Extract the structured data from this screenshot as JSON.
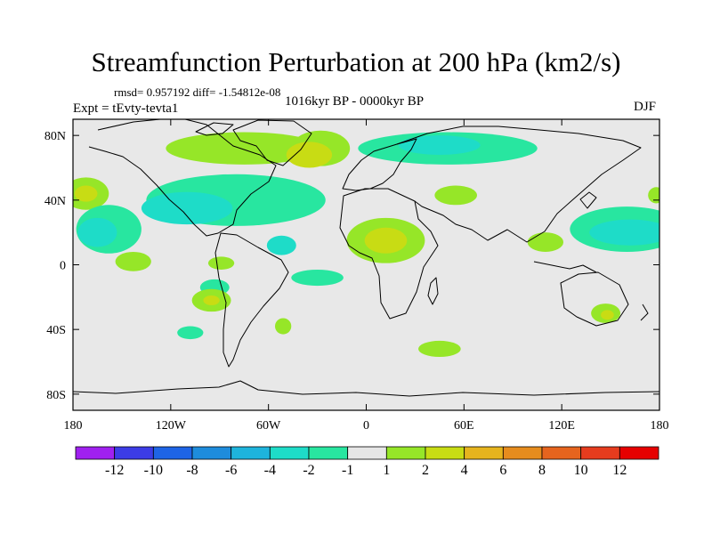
{
  "chart_data": {
    "type": "map-contour",
    "title": "Streamfunction Perturbation at 200 hPa (km2/s)",
    "stats_text": "rmsd= 0.957192 diff= -1.54812e-08",
    "left_subtitle": "Expt = tEvty-tevta1",
    "center_subtitle": "1016kyr BP - 0000kyr BP",
    "right_subtitle": "DJF",
    "projection": "cylindrical-equidistant",
    "xlim": [
      -180,
      180
    ],
    "ylim": [
      -90,
      90
    ],
    "x_ticks": [
      -180,
      -120,
      -60,
      0,
      60,
      120,
      180
    ],
    "x_tick_labels": [
      "180",
      "120W",
      "60W",
      "0",
      "60E",
      "120E",
      "180"
    ],
    "y_ticks": [
      80,
      40,
      0,
      -40,
      -80
    ],
    "y_tick_labels": [
      "80N",
      "40N",
      "0",
      "40S",
      "80S"
    ],
    "background_color": "#e8e8e8",
    "levels": [
      -12,
      -10,
      -8,
      -6,
      -4,
      -2,
      -1,
      1,
      2,
      4,
      6,
      8,
      10,
      12
    ],
    "colorbar_labels": [
      "-12",
      "-10",
      "-8",
      "-6",
      "-4",
      "-2",
      "-1",
      "1",
      "2",
      "4",
      "6",
      "8",
      "10",
      "12"
    ],
    "colorbar_colors": [
      "#a020f0",
      "#3c3ce6",
      "#1e64e6",
      "#1e8cdc",
      "#1eb4dc",
      "#1edcc8",
      "#28e6a0",
      "#e6e6e6",
      "#96e628",
      "#c8dc14",
      "#e6b41e",
      "#e68c1e",
      "#e6641e",
      "#e63c1e",
      "#e60000"
    ],
    "contour_regions": [
      {
        "name": "north-america-high",
        "lon": -75,
        "lat": 72,
        "rx": 48,
        "ry": 10,
        "color": "#96e628"
      },
      {
        "name": "greenland-high",
        "lon": -28,
        "lat": 72,
        "rx": 18,
        "ry": 11,
        "color": "#96e628"
      },
      {
        "name": "greenland-high-core",
        "lon": -35,
        "lat": 68,
        "rx": 14,
        "ry": 8,
        "color": "#c8dc14"
      },
      {
        "name": "siberia-low",
        "lon": 50,
        "lat": 72,
        "rx": 55,
        "ry": 10,
        "color": "#28e6a0"
      },
      {
        "name": "siberia-low-core",
        "lon": 45,
        "lat": 74,
        "rx": 25,
        "ry": 6,
        "color": "#1edcc8"
      },
      {
        "name": "north-pacific-high",
        "lon": -172,
        "lat": 44,
        "rx": 14,
        "ry": 10,
        "color": "#96e628"
      },
      {
        "name": "north-pacific-high-core",
        "lon": -172,
        "lat": 44,
        "rx": 7,
        "ry": 5,
        "color": "#c8dc14"
      },
      {
        "name": "east-pacific-low",
        "lon": -158,
        "lat": 22,
        "rx": 20,
        "ry": 15,
        "color": "#28e6a0"
      },
      {
        "name": "east-pacific-low-core",
        "lon": -165,
        "lat": 20,
        "rx": 12,
        "ry": 9,
        "color": "#1edcc8"
      },
      {
        "name": "north-atlantic-low",
        "lon": -80,
        "lat": 40,
        "rx": 55,
        "ry": 16,
        "color": "#28e6a0"
      },
      {
        "name": "north-atlantic-low-core",
        "lon": -110,
        "lat": 35,
        "rx": 28,
        "ry": 10,
        "color": "#1edcc8"
      },
      {
        "name": "mid-atlantic-low",
        "lon": -40,
        "lat": 36,
        "rx": 10,
        "ry": 5,
        "color": "#28e6a0"
      },
      {
        "name": "caribbean-low",
        "lon": -52,
        "lat": 12,
        "rx": 9,
        "ry": 6,
        "color": "#1edcc8"
      },
      {
        "name": "south-atlantic-low",
        "lon": -30,
        "lat": -8,
        "rx": 16,
        "ry": 5,
        "color": "#28e6a0"
      },
      {
        "name": "africa-high",
        "lon": 12,
        "lat": 15,
        "rx": 24,
        "ry": 14,
        "color": "#96e628"
      },
      {
        "name": "africa-high-core",
        "lon": 12,
        "lat": 15,
        "rx": 13,
        "ry": 8,
        "color": "#c8dc14"
      },
      {
        "name": "arabia-high",
        "lon": 55,
        "lat": 43,
        "rx": 13,
        "ry": 6,
        "color": "#96e628"
      },
      {
        "name": "india-high",
        "lon": 110,
        "lat": 14,
        "rx": 11,
        "ry": 6,
        "color": "#96e628"
      },
      {
        "name": "west-pacific-low",
        "lon": 160,
        "lat": 22,
        "rx": 35,
        "ry": 14,
        "color": "#28e6a0"
      },
      {
        "name": "west-pacific-low-core",
        "lon": 162,
        "lat": 20,
        "rx": 25,
        "ry": 8,
        "color": "#1edcc8"
      },
      {
        "name": "dateline-high",
        "lon": 178,
        "lat": 43,
        "rx": 5,
        "ry": 5,
        "color": "#96e628"
      },
      {
        "name": "south-pacific-high",
        "lon": -143,
        "lat": 2,
        "rx": 11,
        "ry": 6,
        "color": "#96e628"
      },
      {
        "name": "south-pacific-high-2",
        "lon": -89,
        "lat": 1,
        "rx": 8,
        "ry": 4,
        "color": "#96e628"
      },
      {
        "name": "south-pacific-low",
        "lon": -93,
        "lat": -14,
        "rx": 9,
        "ry": 5,
        "color": "#28e6a0"
      },
      {
        "name": "southeast-pacific-high",
        "lon": -95,
        "lat": -22,
        "rx": 12,
        "ry": 7,
        "color": "#96e628"
      },
      {
        "name": "southeast-pacific-high-core",
        "lon": -95,
        "lat": -22,
        "rx": 5,
        "ry": 3,
        "color": "#c8dc14"
      },
      {
        "name": "south-chile-low",
        "lon": -108,
        "lat": -42,
        "rx": 8,
        "ry": 4,
        "color": "#28e6a0"
      },
      {
        "name": "south-atlantic-low-2",
        "lon": -51,
        "lat": -38,
        "rx": 5,
        "ry": 5,
        "color": "#96e628"
      },
      {
        "name": "south-indian-high",
        "lon": 45,
        "lat": -52,
        "rx": 13,
        "ry": 5,
        "color": "#96e628"
      },
      {
        "name": "australia-high",
        "lon": 147,
        "lat": -30,
        "rx": 9,
        "ry": 6,
        "color": "#96e628"
      },
      {
        "name": "australia-high-core",
        "lon": 148,
        "lat": -31,
        "rx": 4,
        "ry": 3,
        "color": "#c8dc14"
      }
    ]
  }
}
